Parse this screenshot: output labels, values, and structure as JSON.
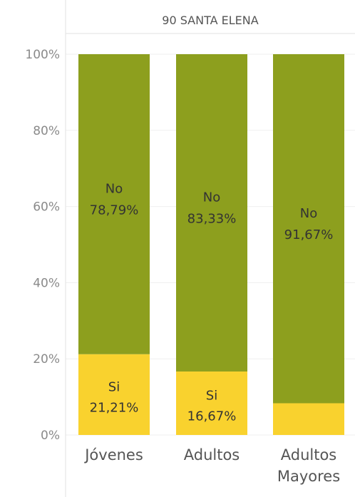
{
  "header": {
    "title": "90 SANTA ELENA"
  },
  "chart_data": {
    "type": "bar",
    "stacked": true,
    "normalized": true,
    "categories": [
      "Jóvenes",
      "Adultos",
      "Adultos Mayores"
    ],
    "category_lines": [
      [
        "Jóvenes"
      ],
      [
        "Adultos"
      ],
      [
        "Adultos",
        "Mayores"
      ]
    ],
    "series": [
      {
        "name": "Si",
        "values": [
          21.21,
          16.67,
          8.33
        ],
        "labels": [
          "21,21%",
          "16,67%",
          ""
        ],
        "color": "#f9d22e"
      },
      {
        "name": "No",
        "values": [
          78.79,
          83.33,
          91.67
        ],
        "labels": [
          "78,79%",
          "83,33%",
          "91,67%"
        ],
        "color": "#8d9f1e"
      }
    ],
    "yticks": [
      "0%",
      "20%",
      "40%",
      "60%",
      "80%",
      "100%"
    ],
    "ylim": [
      0,
      100
    ],
    "grid": true,
    "legend": "none"
  }
}
